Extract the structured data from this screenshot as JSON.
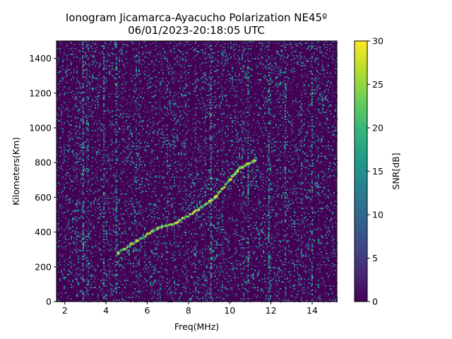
{
  "chart_data": {
    "type": "heatmap",
    "title": "Ionogram Jicamarca-Ayacucho Polarization NE45º",
    "subtitle": "06/01/2023-20:18:05 UTC",
    "xlabel": "Freq(MHz)",
    "ylabel": "Kilometers(Km)",
    "xlim": [
      1.6,
      15.2
    ],
    "ylim": [
      0,
      1500
    ],
    "xticks": [
      2,
      4,
      6,
      8,
      10,
      12,
      14
    ],
    "yticks": [
      0,
      200,
      400,
      600,
      800,
      1000,
      1200,
      1400
    ],
    "colorbar": {
      "label": "SNR[dB]",
      "range": [
        0,
        30
      ],
      "ticks": [
        0,
        5,
        10,
        15,
        20,
        25,
        30
      ],
      "colormap": "viridis"
    },
    "traces": [
      {
        "name": "main echo trace",
        "points": [
          {
            "freq": 4.6,
            "km": 280
          },
          {
            "freq": 5.5,
            "km": 350
          },
          {
            "freq": 6.5,
            "km": 420
          },
          {
            "freq": 7.5,
            "km": 460
          },
          {
            "freq": 8.5,
            "km": 530
          },
          {
            "freq": 9.3,
            "km": 600
          },
          {
            "freq": 10.0,
            "km": 700
          },
          {
            "freq": 10.5,
            "km": 770
          },
          {
            "freq": 11.2,
            "km": 810
          }
        ]
      }
    ]
  },
  "colors": {
    "background": "#440154",
    "accent": "#fde725"
  }
}
